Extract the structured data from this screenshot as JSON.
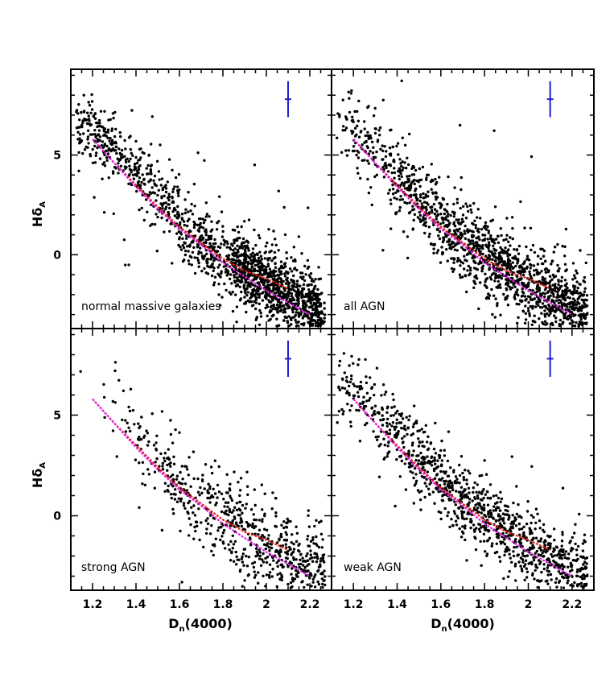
{
  "chart_data": {
    "type": "scatter",
    "xlabel_main": "D",
    "xlabel_sub": "n",
    "xlabel_rest": "(4000)",
    "ylabel_main": "Hδ",
    "ylabel_sub": "A",
    "xlim": [
      1.1,
      2.3
    ],
    "ylim": [
      -3.7,
      9.3
    ],
    "xticks": [
      1.2,
      1.4,
      1.6,
      1.8,
      2.0,
      2.2
    ],
    "xtick_labels": [
      "1.2",
      "1.4",
      "1.6",
      "1.8",
      "2",
      "2.2"
    ],
    "yticks": [
      -3,
      0,
      5
    ],
    "ytick_labels": [
      "",
      "0",
      "5"
    ],
    "colors": {
      "points": "#000000",
      "model_red": "#e0241f",
      "model_magenta": "#e023e0",
      "error_bar": "#2020d0"
    },
    "model_tracks": {
      "red": {
        "x": [
          1.2,
          1.3,
          1.4,
          1.5,
          1.6,
          1.7,
          1.8,
          1.9,
          2.0,
          2.1
        ],
        "y": [
          5.8,
          4.6,
          3.5,
          2.4,
          1.4,
          0.6,
          -0.2,
          -0.8,
          -1.2,
          -1.7
        ]
      },
      "magenta": {
        "x": [
          1.2,
          1.3,
          1.4,
          1.5,
          1.6,
          1.7,
          1.8,
          1.9,
          2.0,
          2.1,
          2.2
        ],
        "y": [
          5.8,
          4.6,
          3.4,
          2.3,
          1.3,
          0.5,
          -0.4,
          -1.1,
          -1.8,
          -2.4,
          -3.0
        ]
      }
    },
    "error_bar": {
      "x": 2.1,
      "y": 7.8,
      "dx": 0.01,
      "dy": 0.9
    },
    "panels": [
      {
        "label": "normal massive galaxies",
        "n_points": 1700,
        "center_dx": 0.85,
        "spread": 0.85,
        "dense_high_end": true
      },
      {
        "label": "all AGN",
        "n_points": 1500,
        "center_dx": 0.65,
        "spread": 0.95,
        "dense_high_end": false
      },
      {
        "label": "strong AGN",
        "n_points": 700,
        "center_dx": 0.45,
        "spread": 1.05,
        "dense_high_end": false
      },
      {
        "label": "weak AGN",
        "n_points": 1100,
        "center_dx": 0.75,
        "spread": 0.9,
        "dense_high_end": false
      }
    ]
  }
}
